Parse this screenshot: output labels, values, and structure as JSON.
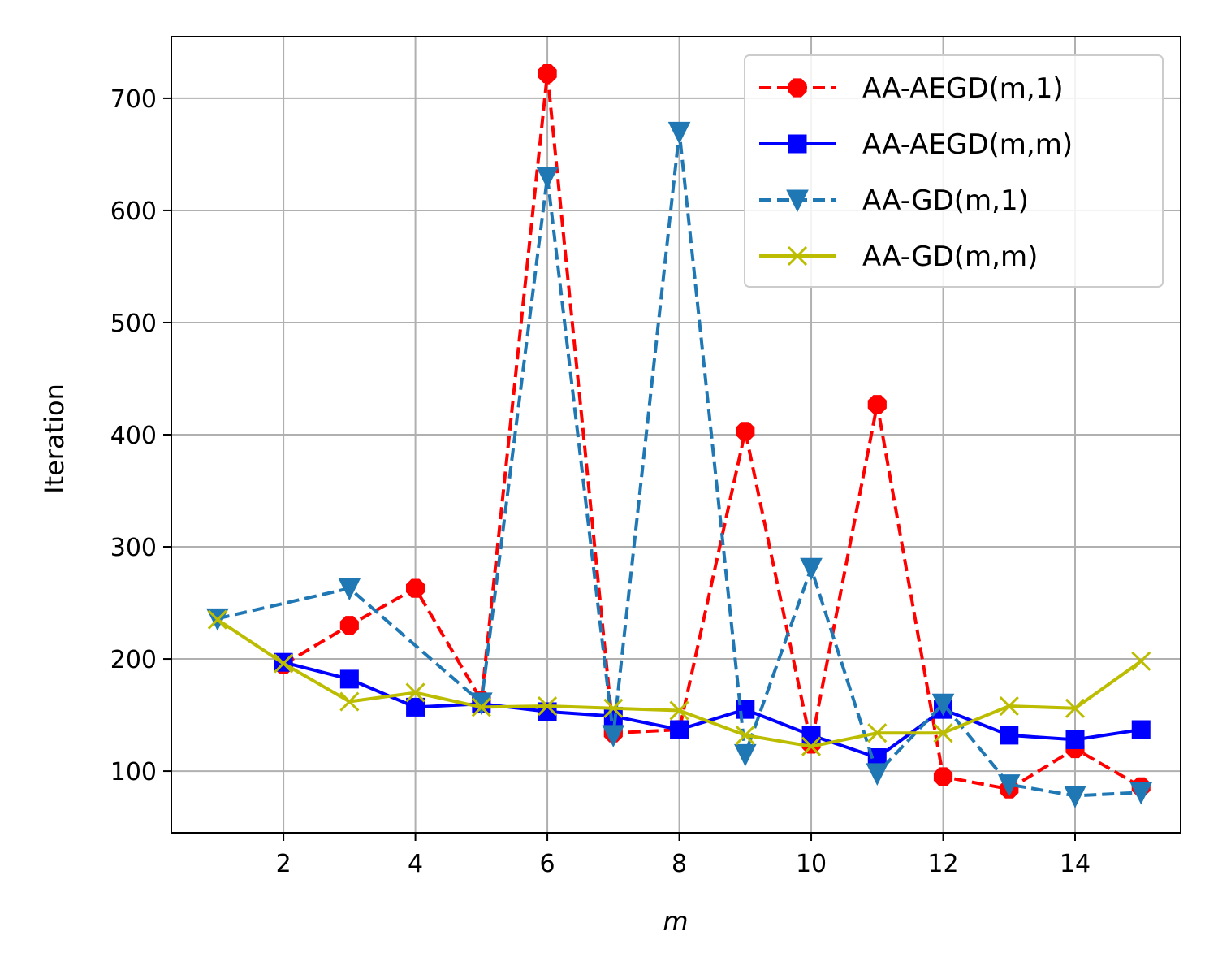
{
  "chart_data": {
    "type": "line",
    "xlabel": "m",
    "ylabel": "Iteration",
    "xlim": [
      0.3,
      15.6
    ],
    "ylim": [
      45,
      755
    ],
    "xticks": [
      2,
      4,
      6,
      8,
      10,
      12,
      14
    ],
    "yticks": [
      100,
      200,
      300,
      400,
      500,
      600,
      700
    ],
    "grid": true,
    "legend_position": "top-right",
    "series": [
      {
        "name": "AA-AEGD(m,1)",
        "color": "#ff0000",
        "line_style": "dashed",
        "marker": "octagon",
        "x": [
          2,
          3,
          4,
          5,
          6,
          7,
          8,
          9,
          10,
          11,
          12,
          13,
          14,
          15
        ],
        "y": [
          195,
          230,
          263,
          163,
          722,
          134,
          137,
          403,
          124,
          427,
          95,
          84,
          120,
          86
        ]
      },
      {
        "name": "AA-AEGD(m,m)",
        "color": "#0000ff",
        "line_style": "solid",
        "marker": "square",
        "x": [
          2,
          3,
          4,
          5,
          6,
          7,
          8,
          9,
          10,
          11,
          12,
          13,
          14,
          15
        ],
        "y": [
          197,
          182,
          157,
          160,
          153,
          149,
          137,
          155,
          132,
          112,
          155,
          132,
          128,
          137
        ]
      },
      {
        "name": "AA-GD(m,1)",
        "color": "#1f77b4",
        "line_style": "dashed",
        "marker": "triangle-down",
        "x": [
          1,
          3,
          5,
          6,
          7,
          8,
          9,
          10,
          11,
          12,
          13,
          14,
          15
        ],
        "y": [
          236,
          263,
          161,
          630,
          132,
          670,
          115,
          281,
          98,
          160,
          88,
          78,
          81
        ]
      },
      {
        "name": "AA-GD(m,m)",
        "color": "#bcbd00",
        "line_style": "solid",
        "marker": "x",
        "x": [
          1,
          2,
          3,
          4,
          5,
          6,
          7,
          8,
          9,
          10,
          11,
          12,
          13,
          14,
          15
        ],
        "y": [
          235,
          196,
          162,
          170,
          157,
          158,
          156,
          154,
          132,
          122,
          134,
          134,
          158,
          156,
          198
        ]
      }
    ]
  }
}
